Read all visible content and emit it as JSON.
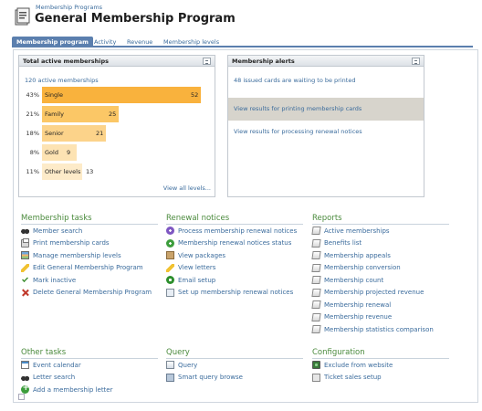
{
  "header": {
    "breadcrumb": "Membership Programs",
    "title": "General Membership Program"
  },
  "tabs": [
    {
      "label": "Membership program",
      "active": true
    },
    {
      "label": "Activity",
      "active": false
    },
    {
      "label": "Revenue",
      "active": false
    },
    {
      "label": "Membership levels",
      "active": false
    }
  ],
  "total_panel": {
    "title": "Total active memberships",
    "total_link": "120 active memberships",
    "view_all": "View all levels..."
  },
  "chart_data": {
    "type": "bar",
    "categories": [
      "Single",
      "Family",
      "Senior",
      "Gold",
      "Other levels"
    ],
    "values": [
      52,
      25,
      21,
      9,
      13
    ],
    "percentages": [
      "43%",
      "21%",
      "18%",
      "8%",
      "11%"
    ],
    "colors": [
      "#f9b23d",
      "#fbc766",
      "#fcd38a",
      "#fde3b3",
      "#fdebc9"
    ]
  },
  "alerts_panel": {
    "title": "Membership alerts",
    "items": [
      "48 issued cards are waiting to be printed",
      "View results for printing membership cards",
      "View results for processing renewal notices"
    ]
  },
  "sections": {
    "membership_tasks": {
      "title": "Membership tasks",
      "items": [
        {
          "label": "Member search",
          "icon": "binoculars-icon"
        },
        {
          "label": "Print membership cards",
          "icon": "printer-icon"
        },
        {
          "label": "Manage membership levels",
          "icon": "levels-icon"
        },
        {
          "label": "Edit General Membership Program",
          "icon": "pencil-icon"
        },
        {
          "label": "Mark inactive",
          "icon": "check-icon"
        },
        {
          "label": "Delete General Membership Program",
          "icon": "delete-icon"
        }
      ]
    },
    "renewal_notices": {
      "title": "Renewal notices",
      "items": [
        {
          "label": "Process membership renewal notices",
          "icon": "process-icon"
        },
        {
          "label": "Membership renewal notices status",
          "icon": "status-icon"
        },
        {
          "label": "View packages",
          "icon": "package-icon"
        },
        {
          "label": "View letters",
          "icon": "letter-icon"
        },
        {
          "label": "Email setup",
          "icon": "email-icon"
        },
        {
          "label": "Set up membership renewal notices",
          "icon": "setup-icon"
        }
      ]
    },
    "reports": {
      "title": "Reports",
      "items": [
        {
          "label": "Active memberships",
          "icon": "report-icon"
        },
        {
          "label": "Benefits list",
          "icon": "report-icon"
        },
        {
          "label": "Membership appeals",
          "icon": "report-icon"
        },
        {
          "label": "Membership conversion",
          "icon": "report-icon"
        },
        {
          "label": "Membership count",
          "icon": "report-icon"
        },
        {
          "label": "Membership projected revenue",
          "icon": "report-icon"
        },
        {
          "label": "Membership renewal",
          "icon": "report-icon"
        },
        {
          "label": "Membership revenue",
          "icon": "report-icon"
        },
        {
          "label": "Membership statistics comparison",
          "icon": "report-icon"
        }
      ]
    },
    "other_tasks": {
      "title": "Other tasks",
      "items": [
        {
          "label": "Event calendar",
          "icon": "calendar-icon"
        },
        {
          "label": "Letter search",
          "icon": "binoculars-icon"
        },
        {
          "label": "Add a membership letter",
          "icon": "add-icon"
        }
      ]
    },
    "query": {
      "title": "Query",
      "items": [
        {
          "label": "Query",
          "icon": "query-icon"
        },
        {
          "label": "Smart query browse",
          "icon": "smart-query-icon"
        }
      ]
    },
    "configuration": {
      "title": "Configuration",
      "items": [
        {
          "label": "Exclude from website",
          "icon": "website-icon"
        },
        {
          "label": "Ticket sales setup",
          "icon": "ticket-icon"
        }
      ]
    }
  }
}
